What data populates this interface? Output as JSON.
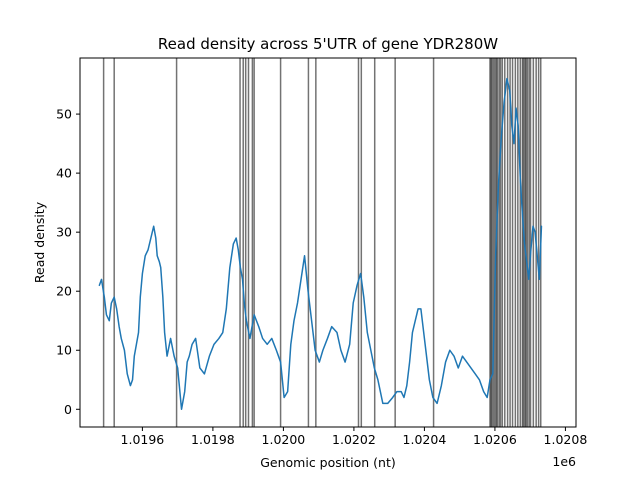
{
  "chart_data": {
    "type": "line",
    "title": "Read density across 5'UTR of gene YDR280W",
    "xlabel": "Genomic position (nt)",
    "ylabel": "Read density",
    "x_offset_label": "1e6",
    "x_scale": 1000000,
    "xlim": [
      1019423,
      1020830
    ],
    "ylim": [
      -3,
      59.5
    ],
    "x_ticks": [
      {
        "value": 1019600,
        "label": "1.0196"
      },
      {
        "value": 1019800,
        "label": "1.0198"
      },
      {
        "value": 1020000,
        "label": "1.0200"
      },
      {
        "value": 1020200,
        "label": "1.0202"
      },
      {
        "value": 1020400,
        "label": "1.0204"
      },
      {
        "value": 1020600,
        "label": "1.0206"
      },
      {
        "value": 1020800,
        "label": "1.0208"
      }
    ],
    "y_ticks": [
      {
        "value": 0,
        "label": "0"
      },
      {
        "value": 10,
        "label": "10"
      },
      {
        "value": 20,
        "label": "20"
      },
      {
        "value": 30,
        "label": "30"
      },
      {
        "value": 40,
        "label": "40"
      },
      {
        "value": 50,
        "label": "50"
      }
    ],
    "grid": false,
    "colors": {
      "line": "#1f77b4",
      "vlines": "#000000"
    },
    "vline_alpha": 0.55,
    "vlines": [
      1019490,
      1019520,
      1019697,
      1019877,
      1019886,
      1019893,
      1019901,
      1019912,
      1019917,
      1019992,
      1020071,
      1020092,
      1020213,
      1020221,
      1020259,
      1020317,
      1020426,
      1020586,
      1020589,
      1020592,
      1020596,
      1020600,
      1020604,
      1020607,
      1020612,
      1020616,
      1020621,
      1020628,
      1020636,
      1020643,
      1020650,
      1020658,
      1020665,
      1020672,
      1020678,
      1020681,
      1020685,
      1020688,
      1020692,
      1020697,
      1020701,
      1020709,
      1020717,
      1020724,
      1020730
    ],
    "series": [
      {
        "name": "Read density",
        "x": [
          1019478,
          1019484,
          1019492,
          1019498,
          1019506,
          1019512,
          1019520,
          1019527,
          1019534,
          1019540,
          1019549,
          1019557,
          1019566,
          1019572,
          1019577,
          1019583,
          1019589,
          1019594,
          1019600,
          1019608,
          1019616,
          1019624,
          1019632,
          1019638,
          1019642,
          1019648,
          1019652,
          1019658,
          1019663,
          1019670,
          1019680,
          1019690,
          1019700,
          1019711,
          1019720,
          1019727,
          1019733,
          1019741,
          1019751,
          1019763,
          1019776,
          1019790,
          1019803,
          1019817,
          1019828,
          1019838,
          1019848,
          1019858,
          1019866,
          1019872,
          1019878,
          1019884,
          1019889,
          1019895,
          1019905,
          1019917,
          1019930,
          1019941,
          1019954,
          1019967,
          1019980,
          1019992,
          1020002,
          1020012,
          1020021,
          1020030,
          1020040,
          1020050,
          1020060,
          1020070,
          1020078,
          1020090,
          1020102,
          1020112,
          1020125,
          1020137,
          1020152,
          1020163,
          1020175,
          1020188,
          1020198,
          1020209,
          1020219,
          1020228,
          1020238,
          1020248,
          1020258,
          1020268,
          1020282,
          1020296,
          1020310,
          1020322,
          1020334,
          1020342,
          1020350,
          1020358,
          1020366,
          1020374,
          1020382,
          1020390,
          1020398,
          1020406,
          1020414,
          1020424,
          1020436,
          1020448,
          1020460,
          1020472,
          1020484,
          1020496,
          1020508,
          1020520,
          1020532,
          1020544,
          1020556,
          1020568,
          1020578,
          1020586,
          1020594,
          1020602,
          1020610,
          1020618,
          1020626,
          1020634,
          1020642,
          1020648,
          1020654,
          1020660,
          1020666,
          1020672,
          1020678,
          1020684,
          1020690,
          1020696,
          1020702,
          1020708,
          1020714,
          1020720,
          1020726,
          1020732
        ],
        "y": [
          21,
          22,
          19,
          16,
          15,
          18,
          19,
          17,
          14,
          12,
          10,
          6,
          4,
          5,
          9,
          11,
          13,
          19,
          23,
          26,
          27,
          29,
          31,
          29,
          26,
          25,
          24,
          19,
          13,
          9,
          12,
          9,
          7,
          0,
          3,
          8,
          9,
          11,
          12,
          7,
          6,
          9,
          11,
          12,
          13,
          17,
          24,
          28,
          29,
          27,
          24,
          22,
          18,
          15,
          12,
          16,
          14,
          12,
          11,
          12,
          10,
          8,
          2,
          3,
          11,
          15,
          18,
          22,
          26,
          20,
          16,
          10,
          8,
          10,
          12,
          14,
          13,
          10,
          8,
          11,
          18,
          21,
          23,
          19,
          13,
          10,
          7,
          5,
          1,
          1,
          2,
          3,
          3,
          2,
          4,
          8,
          13,
          15,
          17,
          17,
          13,
          9,
          5,
          2,
          1,
          4,
          8,
          10,
          9,
          7,
          9,
          8,
          7,
          6,
          5,
          3,
          2,
          5,
          6,
          26,
          38,
          46,
          52,
          56,
          54,
          48,
          45,
          51,
          48,
          39,
          33,
          28,
          25,
          22,
          27,
          31,
          30,
          26,
          22,
          31
        ]
      }
    ]
  }
}
